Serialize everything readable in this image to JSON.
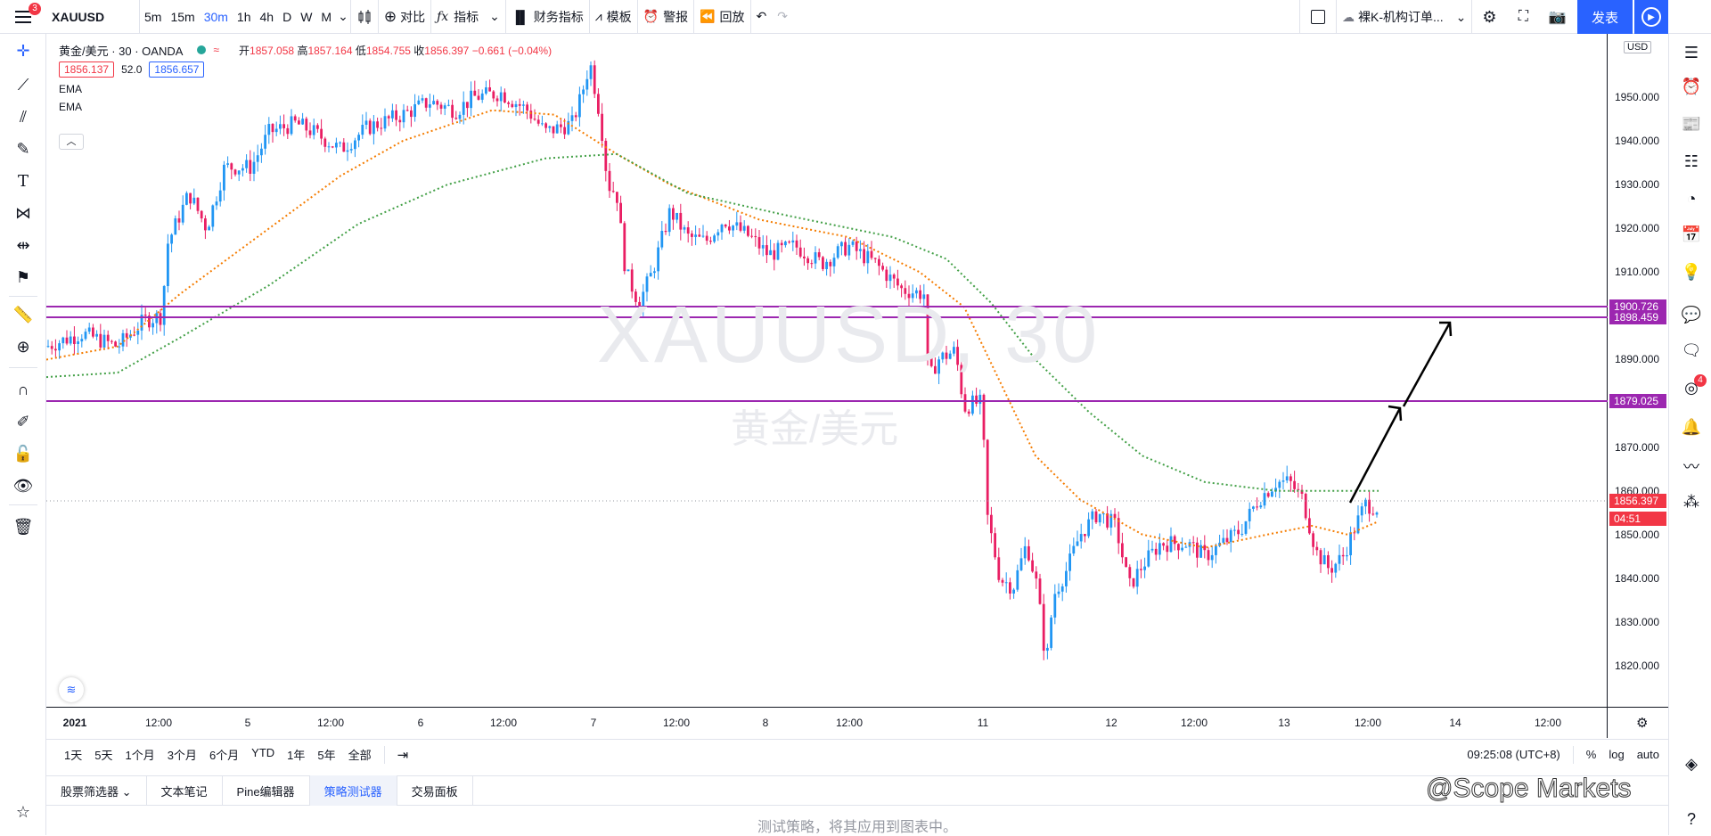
{
  "topbar": {
    "menu_badge": "3",
    "symbol": "XAUUSD",
    "intervals": [
      "5m",
      "15m",
      "30m",
      "1h",
      "4h",
      "D",
      "W",
      "M"
    ],
    "active_interval": "30m",
    "compare": "对比",
    "indicators": "指标",
    "financials": "财务指标",
    "templates": "模板",
    "alert": "警报",
    "replay": "回放",
    "layout_name": "裸K-机构订单...",
    "publish": "发表"
  },
  "legend": {
    "title": "黄金/美元 · 30 · OANDA",
    "open_label": "开",
    "open": "1857.058",
    "high_label": "高",
    "high": "1857.164",
    "low_label": "低",
    "low": "1854.755",
    "close_label": "收",
    "close": "1856.397",
    "change": "−0.661 (−0.04%)",
    "bid": "1856.137",
    "spread": "52.0",
    "ask": "1856.657",
    "ema1": "EMA",
    "ema2": "EMA"
  },
  "watermark": {
    "symbol": "XAUUSD, 30",
    "name": "黄金/美元"
  },
  "price_axis": {
    "currency": "USD",
    "ticks": [
      "1950.000",
      "1940.000",
      "1930.000",
      "1920.000",
      "1910.000",
      "1890.000",
      "1870.000",
      "1860.000",
      "1850.000",
      "1840.000",
      "1830.000",
      "1820.000"
    ],
    "labels": [
      {
        "text": "1900.726",
        "color": "#9c27b0"
      },
      {
        "text": "1898.459",
        "color": "#9c27b0"
      },
      {
        "text": "1879.025",
        "color": "#9c27b0"
      },
      {
        "text": "1856.397",
        "color": "#f23645"
      },
      {
        "text": "04:51",
        "color": "#f23645"
      }
    ]
  },
  "time_axis": {
    "ticks": [
      "2021",
      "12:00",
      "5",
      "12:00",
      "6",
      "12:00",
      "7",
      "12:00",
      "8",
      "12:00",
      "11",
      "12",
      "12:00",
      "13",
      "12:00",
      "14",
      "12:00"
    ]
  },
  "chart_data": {
    "type": "candlestick",
    "symbol": "XAUUSD",
    "interval": "30",
    "ylim": [
      1815,
      1960
    ],
    "horizontal_levels": [
      1900.726,
      1898.459,
      1879.025
    ],
    "last_price": 1856.397,
    "series": [
      {
        "name": "EMA",
        "color": "#f57c00"
      },
      {
        "name": "EMA",
        "color": "#43a047"
      }
    ]
  },
  "range_bar": {
    "ranges": [
      "1天",
      "5天",
      "1个月",
      "3个月",
      "6个月",
      "YTD",
      "1年",
      "5年",
      "全部"
    ],
    "clock": "09:25:08 (UTC+8)",
    "percent": "%",
    "log": "log",
    "auto": "auto"
  },
  "bottom_tabs": {
    "items": [
      "股票筛选器",
      "文本笔记",
      "Pine编辑器",
      "策略测试器",
      "交易面板"
    ],
    "active": "策略测试器",
    "hint": "测试策略，将其应用到图表中。"
  },
  "brand": "@Scope Markets",
  "right_badge": "4"
}
